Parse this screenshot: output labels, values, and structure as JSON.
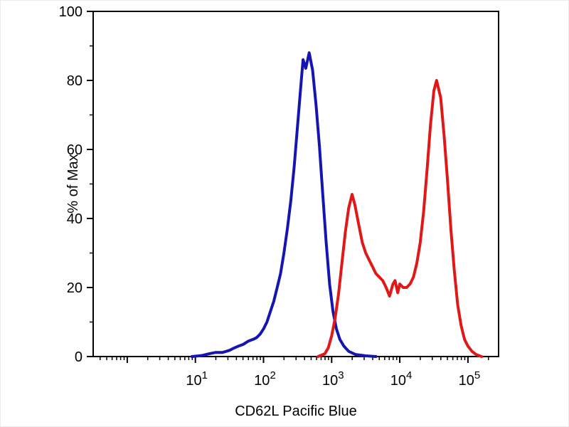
{
  "figure": {
    "background": "#ffffff",
    "axis_color": "#000000"
  },
  "chart_data": {
    "type": "line",
    "chart_kind": "flow-cytometry-histogram-overlay",
    "title": "",
    "xlabel": "CD62L Pacific Blue",
    "ylabel": "% of Max",
    "x_scale": "log10",
    "xlog_range": [
      -0.5,
      5.45
    ],
    "ylim": [
      0,
      100
    ],
    "yticks_major": [
      0,
      20,
      40,
      60,
      80,
      100
    ],
    "yticks_minor": [
      10,
      30,
      50,
      70,
      90
    ],
    "xticks_labeled_exponents": [
      1,
      2,
      3,
      4,
      5
    ],
    "grid": false,
    "legend": "none",
    "series": [
      {
        "name": "blue-population",
        "color": "#1515b2",
        "peak_summary": "single peak ~88% of Max at ~4.7e2",
        "points": [
          [
            0.95,
            0
          ],
          [
            1.1,
            0.3
          ],
          [
            1.2,
            0.8
          ],
          [
            1.3,
            1.2
          ],
          [
            1.4,
            1.2
          ],
          [
            1.5,
            1.8
          ],
          [
            1.57,
            2.5
          ],
          [
            1.63,
            3
          ],
          [
            1.7,
            3.5
          ],
          [
            1.78,
            4.5
          ],
          [
            1.85,
            5
          ],
          [
            1.9,
            5.5
          ],
          [
            1.95,
            6.5
          ],
          [
            2.0,
            8
          ],
          [
            2.05,
            10
          ],
          [
            2.1,
            13
          ],
          [
            2.15,
            16
          ],
          [
            2.2,
            20
          ],
          [
            2.25,
            24
          ],
          [
            2.3,
            30
          ],
          [
            2.35,
            37
          ],
          [
            2.4,
            45
          ],
          [
            2.45,
            55
          ],
          [
            2.5,
            67
          ],
          [
            2.55,
            79
          ],
          [
            2.58,
            86
          ],
          [
            2.62,
            83.5
          ],
          [
            2.67,
            88
          ],
          [
            2.72,
            83
          ],
          [
            2.77,
            73
          ],
          [
            2.82,
            61
          ],
          [
            2.87,
            47
          ],
          [
            2.92,
            33
          ],
          [
            2.97,
            21
          ],
          [
            3.02,
            13
          ],
          [
            3.07,
            8
          ],
          [
            3.12,
            5
          ],
          [
            3.18,
            3
          ],
          [
            3.25,
            1.5
          ],
          [
            3.35,
            0.6
          ],
          [
            3.5,
            0.2
          ],
          [
            3.65,
            0
          ]
        ]
      },
      {
        "name": "red-population",
        "color": "#e01818",
        "peak_summary": "bimodal: ~47% at ~2e3 and ~80% at ~3.5e4",
        "points": [
          [
            2.8,
            0
          ],
          [
            2.9,
            0.8
          ],
          [
            2.95,
            2.5
          ],
          [
            3.0,
            6
          ],
          [
            3.05,
            11
          ],
          [
            3.1,
            18
          ],
          [
            3.15,
            27
          ],
          [
            3.2,
            36
          ],
          [
            3.25,
            43
          ],
          [
            3.3,
            47
          ],
          [
            3.34,
            44
          ],
          [
            3.4,
            38
          ],
          [
            3.45,
            33
          ],
          [
            3.5,
            30
          ],
          [
            3.55,
            28
          ],
          [
            3.6,
            26
          ],
          [
            3.65,
            24
          ],
          [
            3.7,
            23
          ],
          [
            3.75,
            22
          ],
          [
            3.8,
            20
          ],
          [
            3.85,
            17.5
          ],
          [
            3.9,
            21
          ],
          [
            3.93,
            22
          ],
          [
            3.97,
            18.5
          ],
          [
            4.0,
            21
          ],
          [
            4.05,
            20
          ],
          [
            4.1,
            20
          ],
          [
            4.15,
            21
          ],
          [
            4.2,
            23
          ],
          [
            4.25,
            27
          ],
          [
            4.3,
            33
          ],
          [
            4.35,
            42
          ],
          [
            4.4,
            54
          ],
          [
            4.45,
            67
          ],
          [
            4.5,
            77
          ],
          [
            4.54,
            80
          ],
          [
            4.6,
            75
          ],
          [
            4.65,
            64
          ],
          [
            4.7,
            51
          ],
          [
            4.75,
            37
          ],
          [
            4.8,
            25
          ],
          [
            4.85,
            15
          ],
          [
            4.9,
            9
          ],
          [
            4.95,
            5
          ],
          [
            5.0,
            3
          ],
          [
            5.06,
            1.5
          ],
          [
            5.12,
            0.6
          ],
          [
            5.2,
            0
          ]
        ]
      }
    ]
  }
}
